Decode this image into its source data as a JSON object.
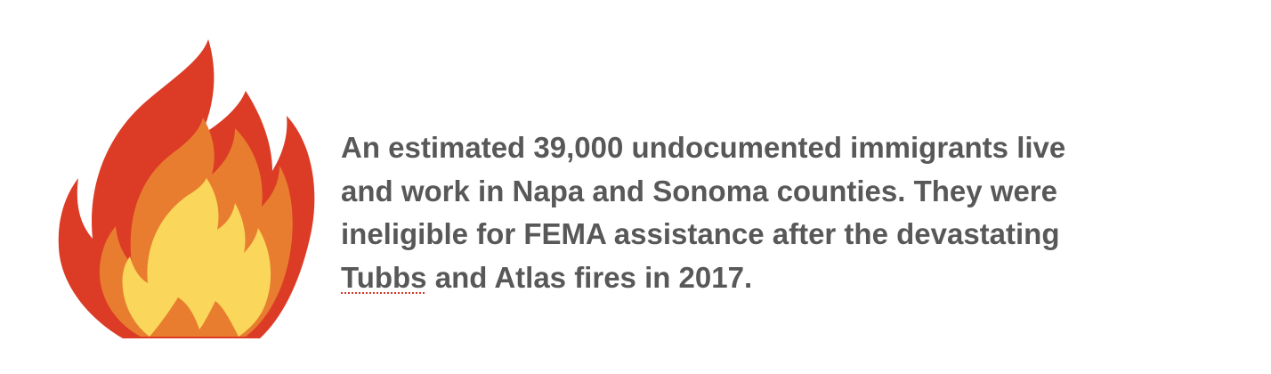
{
  "illustration": {
    "icon": "fire-icon",
    "colors": {
      "outer": "#dc3b25",
      "middle": "#e87d2f",
      "inner": "#fad65a"
    }
  },
  "blurb": {
    "line1": "An estimated 39,000 undocumented immigrants live",
    "line2": "and work in Napa and Sonoma counties. They were",
    "line3": "ineligible for FEMA assistance after the devastating",
    "line4_flagged_word": "Tubbs",
    "line4_rest": " and Atlas fires in 2017.",
    "text_color": "#585858"
  }
}
